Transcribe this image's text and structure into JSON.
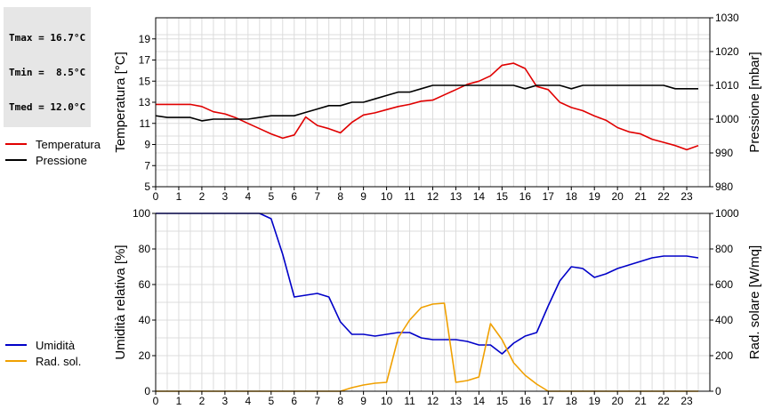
{
  "stats": {
    "lines": [
      "Tmax = 16.7°C",
      "Tmin =  8.5°C",
      "Tmed = 12.0°C"
    ]
  },
  "legends": {
    "top": [
      {
        "label": "Temperatura",
        "color": "#e00000"
      },
      {
        "label": "Pressione",
        "color": "#000000"
      }
    ],
    "bottom": [
      {
        "label": "Umidità",
        "color": "#0000c8"
      },
      {
        "label": "Rad. sol.",
        "color": "#f0a000"
      }
    ]
  },
  "chart_data": [
    {
      "type": "line",
      "xlim": [
        0,
        24
      ],
      "xticks": [
        0,
        1,
        2,
        3,
        4,
        5,
        6,
        7,
        8,
        9,
        10,
        11,
        12,
        13,
        14,
        15,
        16,
        17,
        18,
        19,
        20,
        21,
        22,
        23
      ],
      "ylabel": "Temperatura [°C]",
      "y2label": "Pressione [mbar]",
      "ylim": [
        5,
        21
      ],
      "yticks": [
        5,
        7,
        9,
        11,
        13,
        15,
        17,
        19
      ],
      "y2lim": [
        980,
        1030
      ],
      "y2ticks": [
        980,
        990,
        1000,
        1010,
        1020,
        1030
      ],
      "grid": true,
      "series": [
        {
          "name": "Temperatura",
          "axis": "left",
          "color": "#e00000",
          "x": [
            0,
            0.5,
            1,
            1.5,
            2,
            2.5,
            3,
            3.5,
            4,
            4.5,
            5,
            5.5,
            6,
            6.5,
            7,
            7.5,
            8,
            8.5,
            9,
            9.5,
            10,
            10.5,
            11,
            11.5,
            12,
            12.5,
            13,
            13.5,
            14,
            14.5,
            15,
            15.5,
            16,
            16.5,
            17,
            17.5,
            18,
            18.5,
            19,
            19.5,
            20,
            20.5,
            21,
            21.5,
            22,
            22.5,
            23,
            23.5
          ],
          "y": [
            12.8,
            12.8,
            12.8,
            12.8,
            12.6,
            12.1,
            11.9,
            11.5,
            11.0,
            10.5,
            10.0,
            9.6,
            9.9,
            11.6,
            10.8,
            10.5,
            10.1,
            11.1,
            11.8,
            12.0,
            12.3,
            12.6,
            12.8,
            13.1,
            13.2,
            13.7,
            14.2,
            14.7,
            15.0,
            15.5,
            16.5,
            16.7,
            16.2,
            14.5,
            14.2,
            13.0,
            12.5,
            12.2,
            11.7,
            11.3,
            10.6,
            10.2,
            10.0,
            9.5,
            9.2,
            8.9,
            8.5,
            8.9
          ]
        },
        {
          "name": "Pressione",
          "axis": "right",
          "color": "#000000",
          "x": [
            0,
            0.5,
            1,
            1.5,
            2,
            2.5,
            3,
            3.5,
            4,
            4.5,
            5,
            5.5,
            6,
            6.5,
            7,
            7.5,
            8,
            8.5,
            9,
            9.5,
            10,
            10.5,
            11,
            11.5,
            12,
            12.5,
            13,
            13.5,
            14,
            14.5,
            15,
            15.5,
            16,
            16.5,
            17,
            17.5,
            18,
            18.5,
            19,
            19.5,
            20,
            20.5,
            21,
            21.5,
            22,
            22.5,
            23,
            23.5
          ],
          "y": [
            1001,
            1000.5,
            1000.5,
            1000.5,
            999.5,
            1000,
            1000,
            1000,
            1000,
            1000.5,
            1001,
            1001,
            1001,
            1002,
            1003,
            1004,
            1004,
            1005,
            1005,
            1006,
            1007,
            1008,
            1008,
            1009,
            1010,
            1010,
            1010,
            1010,
            1010,
            1010,
            1010,
            1010,
            1009,
            1010,
            1010,
            1010,
            1009,
            1010,
            1010,
            1010,
            1010,
            1010,
            1010,
            1010,
            1010,
            1009,
            1009,
            1009
          ]
        }
      ]
    },
    {
      "type": "line",
      "xlim": [
        0,
        24
      ],
      "xticks": [
        0,
        1,
        2,
        3,
        4,
        5,
        6,
        7,
        8,
        9,
        10,
        11,
        12,
        13,
        14,
        15,
        16,
        17,
        18,
        19,
        20,
        21,
        22,
        23
      ],
      "ylabel": "Umidità relativa [%]",
      "y2label": "Rad. solare [W/mq]",
      "ylim": [
        0,
        100
      ],
      "yticks": [
        0,
        20,
        40,
        60,
        80,
        100
      ],
      "y2lim": [
        0,
        1000
      ],
      "y2ticks": [
        0,
        200,
        400,
        600,
        800,
        1000
      ],
      "grid": true,
      "series": [
        {
          "name": "Umidità",
          "axis": "left",
          "color": "#0000c8",
          "x": [
            0,
            0.5,
            1,
            1.5,
            2,
            2.5,
            3,
            3.5,
            4,
            4.5,
            5,
            5.5,
            6,
            6.5,
            7,
            7.5,
            8,
            8.5,
            9,
            9.5,
            10,
            10.5,
            11,
            11.5,
            12,
            12.5,
            13,
            13.5,
            14,
            14.5,
            15,
            15.5,
            16,
            16.5,
            17,
            17.5,
            18,
            18.5,
            19,
            19.5,
            20,
            20.5,
            21,
            21.5,
            22,
            22.5,
            23,
            23.5
          ],
          "y": [
            100,
            100,
            100,
            100,
            100,
            100,
            100,
            100,
            100,
            100,
            97,
            77,
            53,
            54,
            55,
            53,
            39,
            32,
            32,
            31,
            32,
            33,
            33,
            30,
            29,
            29,
            29,
            28,
            26,
            26,
            21,
            27,
            31,
            33,
            48,
            62,
            70,
            69,
            64,
            66,
            69,
            71,
            73,
            75,
            76,
            76,
            76,
            75
          ]
        },
        {
          "name": "Rad. sol.",
          "axis": "right",
          "color": "#f0a000",
          "x": [
            0,
            0.5,
            1,
            1.5,
            2,
            2.5,
            3,
            3.5,
            4,
            4.5,
            5,
            5.5,
            6,
            6.5,
            7,
            7.5,
            8,
            8.5,
            9,
            9.5,
            10,
            10.5,
            11,
            11.5,
            12,
            12.5,
            13,
            13.5,
            14,
            14.5,
            15,
            15.5,
            16,
            16.5,
            17,
            17.5,
            18,
            18.5,
            19,
            19.5,
            20,
            20.5,
            21,
            21.5,
            22,
            22.5,
            23,
            23.5
          ],
          "y": [
            0,
            0,
            0,
            0,
            0,
            0,
            0,
            0,
            0,
            0,
            0,
            0,
            0,
            0,
            0,
            0,
            0,
            20,
            35,
            45,
            50,
            300,
            400,
            470,
            490,
            495,
            50,
            60,
            80,
            380,
            290,
            160,
            90,
            40,
            0,
            0,
            0,
            0,
            0,
            0,
            0,
            0,
            0,
            0,
            0,
            0,
            0,
            0
          ]
        }
      ]
    }
  ]
}
